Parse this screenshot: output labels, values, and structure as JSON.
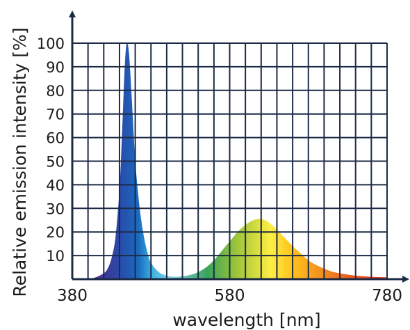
{
  "chart_data": {
    "type": "area",
    "title": "",
    "xlabel": "wavelength [nm]",
    "ylabel": "Relative emission intensity [%]",
    "xlim": [
      380,
      780
    ],
    "ylim": [
      0,
      100
    ],
    "x_tick_labels": [
      "380",
      "580",
      "780"
    ],
    "x_ticks": [
      380,
      580,
      780
    ],
    "x_grid_step": 20,
    "y_tick_labels": [
      "10",
      "20",
      "30",
      "40",
      "50",
      "60",
      "70",
      "80",
      "90",
      "100"
    ],
    "y_ticks": [
      10,
      20,
      30,
      40,
      50,
      60,
      70,
      80,
      90,
      100
    ],
    "grid": true,
    "fill": "visible-spectrum color gradient",
    "series": [
      {
        "x": [
          380,
          400,
          410,
          420,
          425,
          430,
          435,
          440,
          443,
          446,
          448,
          450,
          452,
          454,
          457,
          460,
          465,
          470,
          475,
          480,
          490,
          500,
          510,
          520,
          530,
          540,
          550,
          560,
          570,
          580,
          590,
          600,
          610,
          620,
          630,
          640,
          650,
          660,
          670,
          680,
          690,
          700,
          710,
          720,
          740,
          760,
          780
        ],
        "values": [
          0,
          0.2,
          0.8,
          2.5,
          4.5,
          9,
          18,
          38,
          60,
          85,
          97,
          100,
          96,
          86,
          68,
          50,
          32,
          20,
          12,
          7,
          3,
          1.5,
          1,
          1.2,
          1.8,
          3,
          5,
          8,
          12,
          16,
          20,
          23,
          25,
          25.5,
          24,
          21,
          17.5,
          14,
          11,
          8,
          6,
          4.5,
          3.2,
          2.5,
          1.5,
          1,
          0.8
        ]
      }
    ],
    "colors": {
      "grid": "#1c2b45",
      "axes": "#1c2b45",
      "gradient_stops": [
        "#4b2a8a",
        "#2a4aa8",
        "#1a6bc0",
        "#3fb3e0",
        "#7fd0e8",
        "#3aa35a",
        "#9cc43a",
        "#ffee44",
        "#ffc21a",
        "#f08a20",
        "#e2331f"
      ]
    }
  }
}
